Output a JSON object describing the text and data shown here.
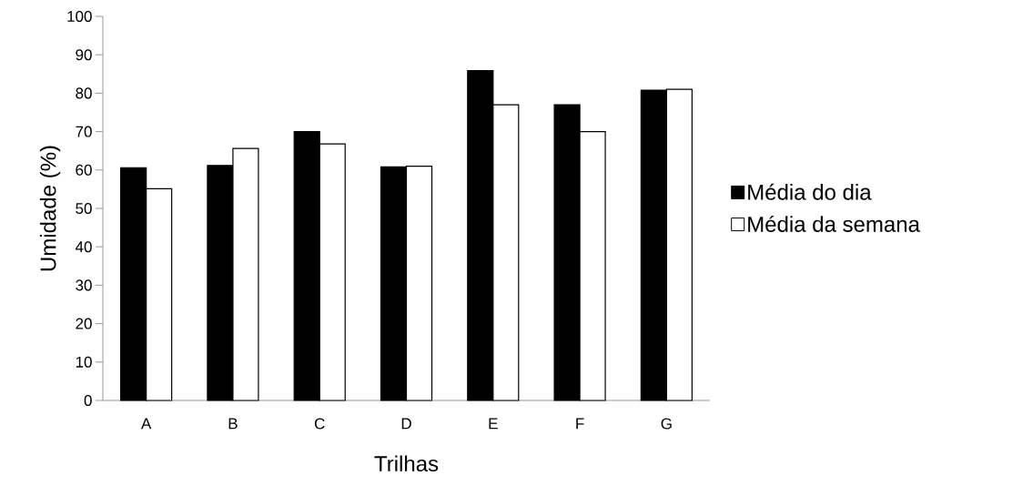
{
  "chart_data": {
    "type": "bar",
    "xlabel": "Trilhas",
    "ylabel": "Umidade (%)",
    "categories": [
      "A",
      "B",
      "C",
      "D",
      "E",
      "F",
      "G"
    ],
    "series": [
      {
        "name": "Média do dia",
        "color": "#000000",
        "values": [
          60.6,
          61.2,
          70.0,
          60.8,
          85.9,
          77.0,
          80.8
        ]
      },
      {
        "name": "Média da semana",
        "color": "#ffffff",
        "values": [
          55.1,
          65.6,
          66.8,
          61.0,
          77.0,
          70.0,
          81.0
        ]
      }
    ],
    "ylim": [
      0,
      100
    ],
    "yticks": [
      0,
      10,
      20,
      30,
      40,
      50,
      60,
      70,
      80,
      90,
      100
    ],
    "legend": "right",
    "grid": false
  }
}
